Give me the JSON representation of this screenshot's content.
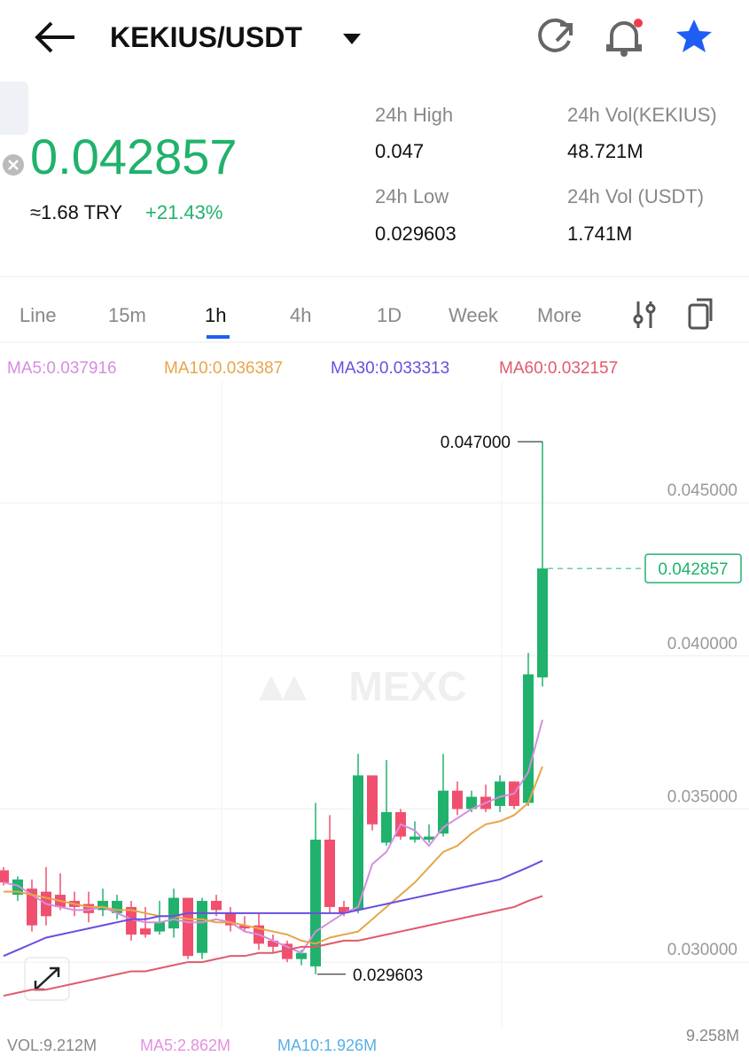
{
  "header": {
    "pair": "KEKIUS/USDT"
  },
  "summary": {
    "price": "0.042857",
    "fiat": "≈1.68 TRY",
    "change": "+21.43%",
    "stats": [
      {
        "label": "24h High",
        "value": "0.047"
      },
      {
        "label": "24h Vol(KEKIUS)",
        "value": "48.721M"
      },
      {
        "label": "24h Low",
        "value": "0.029603"
      },
      {
        "label": "24h Vol (USDT)",
        "value": "1.741M"
      }
    ]
  },
  "tabs": [
    "Line",
    "15m",
    "1h",
    "4h",
    "1D",
    "Week",
    "More"
  ],
  "watermark": "MEXC",
  "volume": {
    "vol": "VOL:9.212M",
    "ma5": "MA5:2.862M",
    "ma10": "MA10:1.926M",
    "max": "9.258M"
  },
  "chart_data": {
    "type": "candlestick",
    "up_color": "#20b26c",
    "down_color": "#f0506e",
    "ylim": [
      0.02812,
      0.05013
    ],
    "yticks": [
      {
        "value": 0.03,
        "label": "0.030000"
      },
      {
        "value": 0.035,
        "label": "0.035000"
      },
      {
        "value": 0.04,
        "label": "0.040000"
      },
      {
        "value": 0.045,
        "label": "0.045000"
      }
    ],
    "grid": true,
    "open": [
      0.033,
      0.0322,
      0.0324,
      0.0323,
      0.0322,
      0.032,
      0.0319,
      0.0317,
      0.0316,
      0.0318,
      0.0311,
      0.031,
      0.0311,
      0.0321,
      0.0303,
      0.032,
      0.0316,
      0.0312,
      0.0312,
      0.0307,
      0.0306,
      0.0301,
      0.02986,
      0.034,
      0.0318,
      0.0317,
      0.0361,
      0.0339,
      0.0349,
      0.034,
      0.034,
      0.0342,
      0.0356,
      0.035,
      0.0354,
      0.0351,
      0.0359,
      0.0352,
      0.0393
    ],
    "high": [
      0.0331,
      0.0328,
      0.0327,
      0.0331,
      0.0329,
      0.0323,
      0.0323,
      0.0324,
      0.0322,
      0.032,
      0.0318,
      0.032,
      0.0324,
      0.0321,
      0.0321,
      0.0322,
      0.0318,
      0.0315,
      0.0316,
      0.0309,
      0.0307,
      0.0304,
      0.0352,
      0.0348,
      0.032,
      0.0368,
      0.0361,
      0.0366,
      0.035,
      0.0346,
      0.0345,
      0.0368,
      0.0359,
      0.0356,
      0.0358,
      0.0361,
      0.0359,
      0.0401,
      0.047
    ],
    "low": [
      0.0325,
      0.032,
      0.031,
      0.0312,
      0.0317,
      0.0315,
      0.0313,
      0.0315,
      0.0314,
      0.0307,
      0.0308,
      0.0309,
      0.0308,
      0.0301,
      0.0301,
      0.0315,
      0.031,
      0.031,
      0.0304,
      0.0303,
      0.03,
      0.0299,
      0.029603,
      0.0316,
      0.0315,
      0.0316,
      0.0343,
      0.0338,
      0.034,
      0.0339,
      0.0339,
      0.0341,
      0.0348,
      0.0349,
      0.0349,
      0.0349,
      0.035,
      0.0351,
      0.039
    ],
    "close": [
      0.0326,
      0.0327,
      0.0312,
      0.0315,
      0.0318,
      0.0318,
      0.0316,
      0.032,
      0.032,
      0.0309,
      0.0309,
      0.0313,
      0.0321,
      0.0302,
      0.032,
      0.0317,
      0.0312,
      0.0311,
      0.0306,
      0.0305,
      0.0301,
      0.0303,
      0.034,
      0.0318,
      0.0316,
      0.0361,
      0.0345,
      0.0349,
      0.0341,
      0.0341,
      0.0341,
      0.0356,
      0.035,
      0.0354,
      0.035,
      0.0359,
      0.0351,
      0.0394,
      0.042857
    ],
    "series": [
      {
        "name": "MA5:0.037916",
        "color": "#d58ee0",
        "values": [
          0.0326,
          0.0325,
          0.0322,
          0.0319,
          0.0318,
          0.0317,
          0.0317,
          0.0318,
          0.0316,
          0.0314,
          0.0313,
          0.0313,
          0.0314,
          0.0313,
          0.0313,
          0.0314,
          0.0313,
          0.031,
          0.0309,
          0.0307,
          0.0305,
          0.0303,
          0.031,
          0.0313,
          0.0316,
          0.0318,
          0.0332,
          0.0336,
          0.0345,
          0.0343,
          0.0338,
          0.0344,
          0.0347,
          0.035,
          0.0352,
          0.0354,
          0.0355,
          0.0362,
          0.037916
        ]
      },
      {
        "name": "MA10:0.036387",
        "color": "#e8a54a",
        "values": [
          0.0323,
          0.0323,
          0.0322,
          0.0321,
          0.032,
          0.0319,
          0.0318,
          0.0318,
          0.0317,
          0.0317,
          0.0316,
          0.0315,
          0.0315,
          0.0314,
          0.0314,
          0.0313,
          0.0313,
          0.0312,
          0.0311,
          0.031,
          0.0309,
          0.0307,
          0.0306,
          0.0308,
          0.0309,
          0.031,
          0.0314,
          0.0318,
          0.0322,
          0.0326,
          0.0331,
          0.0336,
          0.0338,
          0.0342,
          0.0345,
          0.0346,
          0.0348,
          0.0352,
          0.036387
        ]
      },
      {
        "name": "MA30:0.033313",
        "color": "#6a4de0",
        "values": [
          0.0302,
          0.0304,
          0.0306,
          0.0308,
          0.0309,
          0.031,
          0.0311,
          0.0312,
          0.0313,
          0.0314,
          0.0314,
          0.0315,
          0.0315,
          0.0316,
          0.0316,
          0.0316,
          0.0316,
          0.0316,
          0.0316,
          0.0316,
          0.0316,
          0.0316,
          0.0316,
          0.0316,
          0.0316,
          0.0317,
          0.0318,
          0.0319,
          0.032,
          0.0321,
          0.0322,
          0.0323,
          0.0324,
          0.0325,
          0.0326,
          0.0327,
          0.0329,
          0.0331,
          0.033313
        ]
      },
      {
        "name": "MA60:0.032157",
        "color": "#e05a6a",
        "values": [
          0.0289,
          0.029,
          0.0291,
          0.0291,
          0.0292,
          0.0293,
          0.0294,
          0.0295,
          0.0296,
          0.0297,
          0.0297,
          0.0298,
          0.0299,
          0.03,
          0.03,
          0.0301,
          0.0302,
          0.0302,
          0.0303,
          0.0303,
          0.0304,
          0.0305,
          0.0305,
          0.0306,
          0.0307,
          0.0307,
          0.0308,
          0.0309,
          0.031,
          0.0311,
          0.0312,
          0.0313,
          0.0314,
          0.0315,
          0.0316,
          0.0317,
          0.0318,
          0.032,
          0.032157
        ]
      }
    ],
    "annotations": [
      {
        "value": 0.047,
        "label": "0.047000"
      },
      {
        "value": 0.029603,
        "label": "0.029603"
      }
    ],
    "last_price": {
      "value": 0.042857,
      "label": "0.042857"
    }
  }
}
